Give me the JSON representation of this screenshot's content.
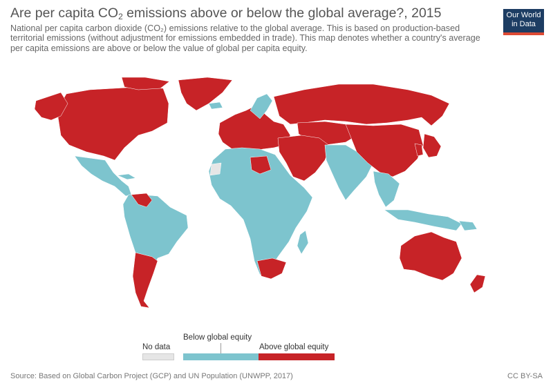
{
  "header": {
    "title_prefix": "Are per capita CO",
    "title_sub": "2",
    "title_suffix": " emissions above or below the global average?, 2015",
    "subtitle": "National per capita carbon dioxide (CO₂) emissions relative to the global average. This is based on production-based territorial emissions (without adjustment for emissions embedded in trade). This map denotes whether a country's average per capita emissions are above or below the value of global per capita equity."
  },
  "logo": {
    "line1": "Our World",
    "line2": "in Data"
  },
  "legend": {
    "no_data": "No data",
    "below": "Below global equity",
    "above": "Above global equity"
  },
  "colors": {
    "above": "#c72327",
    "below": "#7dc4ce",
    "no_data": "#e6e6e6",
    "logo_bg": "#1d3d63",
    "logo_accent": "#dd4a34"
  },
  "map_data": {
    "above_global_equity": [
      "United States",
      "Canada",
      "Greenland",
      "Russia",
      "China",
      "Japan",
      "South Korea",
      "Kazakhstan",
      "Mongolia",
      "Iran",
      "Saudi Arabia",
      "Oman",
      "Libya",
      "South Africa",
      "Argentina",
      "Chile",
      "Venezuela",
      "Australia",
      "New Zealand",
      "Malaysia",
      "Europe"
    ],
    "below_global_equity": [
      "Mexico",
      "Brazil",
      "Africa",
      "India",
      "Southeast Asia",
      "Indonesia",
      "Papua New Guinea",
      "Central America"
    ],
    "no_data": [
      "Western Sahara"
    ]
  },
  "footer": {
    "source": "Source: Based on Global Carbon Project (GCP) and UN Population (UNWPP, 2017)",
    "license": "CC BY-SA"
  }
}
